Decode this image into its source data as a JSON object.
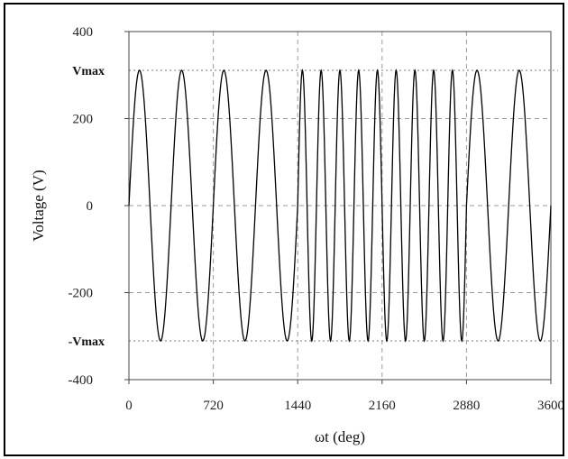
{
  "chart_data": {
    "type": "line",
    "title": "",
    "xlabel": "ωt (deg)",
    "ylabel": "Voltage (V)",
    "xlim": [
      0,
      3600
    ],
    "ylim": [
      -400,
      400
    ],
    "x_ticks": [
      0,
      720,
      1440,
      2160,
      2880,
      3600
    ],
    "x_tick_labels": [
      "0",
      "720",
      "1440",
      "2160",
      "2880",
      "3600"
    ],
    "y_ticks": [
      400,
      200,
      0,
      -200,
      -400
    ],
    "y_tick_labels": [
      "400",
      "200",
      "0",
      "-200",
      "-400"
    ],
    "reference_lines": [
      {
        "label": "Vmax",
        "y": 311
      },
      {
        "label": "-Vmax",
        "y": -311
      }
    ],
    "grid": true,
    "grid_style": "dashed",
    "legend": "none",
    "line_color": "#000000",
    "series": [
      {
        "amplitude": 311,
        "segments": [
          {
            "x_start": 0,
            "x_end": 1440,
            "period_deg": 360
          },
          {
            "x_start": 1440,
            "x_end": 2880,
            "period_deg": 160
          },
          {
            "x_start": 2880,
            "x_end": 3600,
            "period_deg": 360
          }
        ]
      }
    ]
  }
}
